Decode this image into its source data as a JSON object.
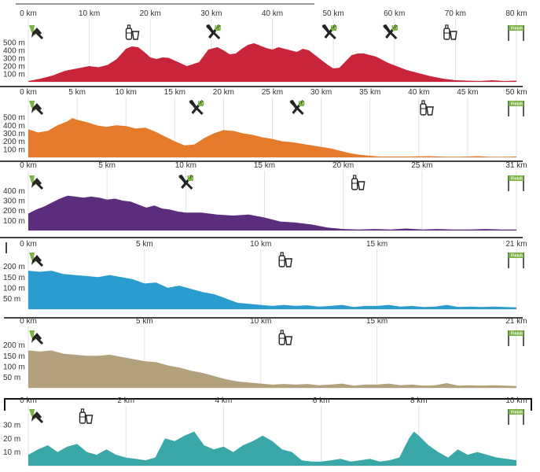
{
  "chart_data": [
    {
      "type": "area",
      "color": "#c8243a",
      "distance_unit": "km",
      "elevation_unit": "m",
      "x_ticks": [
        0,
        10,
        20,
        30,
        40,
        50,
        60,
        70,
        80
      ],
      "x_tick_labels": [
        "0 km",
        "10 km",
        "20 km",
        "30 km",
        "40 km",
        "50 km",
        "60 km",
        "70 km",
        "80 km"
      ],
      "y_ticks": [
        100,
        200,
        300,
        400,
        500
      ],
      "y_tick_labels": [
        "100 m",
        "200 m",
        "300 m",
        "400 m",
        "500 m"
      ],
      "xlim": [
        0,
        80
      ],
      "ylim": [
        0,
        560
      ],
      "icons": [
        {
          "name": "start-icon",
          "km": 0
        },
        {
          "name": "water-icon",
          "km": 17.2
        },
        {
          "name": "food-icon",
          "km": 30.3
        },
        {
          "name": "food-icon",
          "km": 49.3
        },
        {
          "name": "food-icon",
          "km": 59.3
        },
        {
          "name": "water-icon",
          "km": 69.3
        },
        {
          "name": "finish-icon",
          "km": 80
        }
      ],
      "finish_label": "Finish",
      "profile": {
        "x": [
          0,
          2,
          4,
          6,
          8,
          10,
          11.5,
          13,
          14.5,
          16,
          17,
          18,
          19,
          20,
          21,
          22,
          23,
          24,
          26,
          28,
          29.5,
          31,
          32,
          33,
          34,
          35,
          36,
          37,
          38,
          39,
          40,
          41,
          42,
          43,
          44,
          45,
          46,
          47,
          48,
          49,
          50,
          51,
          52,
          53,
          54,
          55,
          56,
          57,
          58,
          59,
          60,
          62,
          64,
          66,
          68,
          70,
          72,
          74,
          76,
          78,
          80
        ],
        "y": [
          10,
          40,
          80,
          140,
          170,
          200,
          185,
          215,
          290,
          420,
          450,
          440,
          380,
          310,
          290,
          310,
          305,
          270,
          200,
          250,
          410,
          440,
          400,
          350,
          360,
          420,
          470,
          490,
          460,
          430,
          410,
          440,
          420,
          400,
          380,
          420,
          400,
          340,
          280,
          220,
          170,
          180,
          260,
          340,
          360,
          360,
          340,
          320,
          280,
          240,
          210,
          150,
          110,
          70,
          40,
          20,
          15,
          10,
          20,
          10,
          15
        ]
      }
    },
    {
      "type": "area",
      "color": "#e57a2a",
      "distance_unit": "km",
      "elevation_unit": "m",
      "x_ticks": [
        0,
        5,
        10,
        15,
        20,
        25,
        30,
        35,
        40,
        45,
        50
      ],
      "x_tick_labels": [
        "0 km",
        "5 km",
        "10 km",
        "15 km",
        "20 km",
        "25 km",
        "30 km",
        "35 km",
        "40 km",
        "45 km",
        "50 km"
      ],
      "y_ticks": [
        100,
        200,
        300,
        400,
        500
      ],
      "y_tick_labels": [
        "100 m",
        "200 m",
        "300 m",
        "400 m",
        "500 m"
      ],
      "xlim": [
        0,
        50
      ],
      "ylim": [
        0,
        560
      ],
      "icons": [
        {
          "name": "start-icon",
          "km": 0
        },
        {
          "name": "food-icon",
          "km": 17.2
        },
        {
          "name": "food-icon",
          "km": 27.5
        },
        {
          "name": "water-icon",
          "km": 40.9
        },
        {
          "name": "finish-icon",
          "km": 50
        }
      ],
      "finish_label": "Finish",
      "profile": {
        "x": [
          0,
          1,
          2,
          3,
          4,
          4.5,
          5,
          6,
          7,
          8,
          9,
          10,
          11,
          12,
          13,
          14,
          15,
          16,
          17,
          18,
          19,
          20,
          21,
          22,
          23,
          24,
          25,
          26,
          27,
          28,
          29,
          30,
          31,
          32,
          33,
          34,
          35,
          36,
          37,
          38,
          39,
          40,
          41,
          42,
          43,
          44,
          45,
          46,
          47,
          48,
          49,
          50
        ],
        "y": [
          350,
          310,
          330,
          400,
          450,
          490,
          470,
          440,
          400,
          380,
          400,
          390,
          360,
          370,
          320,
          260,
          200,
          150,
          160,
          240,
          300,
          340,
          330,
          300,
          280,
          250,
          230,
          200,
          190,
          170,
          150,
          130,
          110,
          80,
          50,
          30,
          20,
          10,
          10,
          10,
          10,
          12,
          15,
          10,
          8,
          8,
          10,
          15,
          8,
          6,
          8,
          10
        ]
      }
    },
    {
      "type": "area",
      "color": "#5c2d7d",
      "distance_unit": "km",
      "elevation_unit": "m",
      "x_ticks": [
        0,
        5,
        10,
        15,
        20,
        25,
        31
      ],
      "x_tick_labels": [
        "0 km",
        "5 km",
        "10 km",
        "15 km",
        "20 km",
        "25 km",
        "31 km"
      ],
      "y_ticks": [
        100,
        200,
        300,
        400
      ],
      "y_tick_labels": [
        "100 m",
        "200 m",
        "300 m",
        "400 m"
      ],
      "xlim": [
        0,
        31
      ],
      "ylim": [
        0,
        450
      ],
      "icons": [
        {
          "name": "start-icon",
          "km": 0
        },
        {
          "name": "food-icon",
          "km": 10
        },
        {
          "name": "water-icon",
          "km": 21
        },
        {
          "name": "finish-icon",
          "km": 31
        }
      ],
      "finish_label": "Finish",
      "profile": {
        "x": [
          0,
          0.5,
          1,
          1.5,
          2,
          2.5,
          3,
          3.5,
          4,
          4.5,
          5,
          5.5,
          6,
          6.5,
          7,
          7.5,
          8,
          8.5,
          9,
          9.5,
          10,
          11,
          12,
          13,
          14,
          15,
          16,
          17,
          18,
          19,
          20,
          21,
          22,
          23,
          24,
          25,
          26,
          27,
          28,
          29,
          30,
          31
        ],
        "y": [
          170,
          210,
          240,
          280,
          320,
          350,
          340,
          330,
          340,
          330,
          310,
          320,
          300,
          290,
          260,
          230,
          250,
          220,
          210,
          190,
          180,
          180,
          160,
          150,
          160,
          130,
          90,
          80,
          60,
          30,
          15,
          10,
          15,
          10,
          20,
          10,
          15,
          10,
          10,
          15,
          10,
          10
        ]
      }
    },
    {
      "type": "area",
      "color": "#2b9cd0",
      "distance_unit": "km",
      "elevation_unit": "m",
      "x_ticks": [
        0,
        5,
        10,
        15,
        21
      ],
      "x_tick_labels": [
        "0 km",
        "5 km",
        "10 km",
        "15 km",
        "21 km"
      ],
      "y_ticks": [
        50,
        100,
        150,
        200
      ],
      "y_tick_labels": [
        "50 m",
        "100 m",
        "150 m",
        "200 m"
      ],
      "xlim": [
        0,
        21
      ],
      "ylim": [
        0,
        210
      ],
      "icons": [
        {
          "name": "start-icon",
          "km": 0
        },
        {
          "name": "water-icon",
          "km": 11.1
        },
        {
          "name": "finish-icon",
          "km": 21
        }
      ],
      "finish_label": "Finish",
      "profile": {
        "x": [
          0,
          0.5,
          1,
          1.5,
          2,
          2.5,
          3,
          3.5,
          4,
          4.5,
          5,
          5.5,
          6,
          6.5,
          7,
          7.5,
          8,
          8.5,
          9,
          9.5,
          10,
          10.5,
          11,
          11.5,
          12,
          12.5,
          13,
          13.5,
          14,
          14.5,
          15,
          15.5,
          16,
          16.5,
          17,
          17.5,
          18,
          18.5,
          19,
          19.5,
          20,
          20.5,
          21
        ],
        "y": [
          180,
          175,
          180,
          165,
          160,
          155,
          150,
          160,
          150,
          140,
          120,
          125,
          100,
          110,
          95,
          80,
          70,
          50,
          30,
          25,
          20,
          15,
          20,
          15,
          18,
          12,
          15,
          20,
          10,
          15,
          15,
          20,
          12,
          15,
          10,
          12,
          20,
          10,
          12,
          10,
          12,
          10,
          8
        ]
      }
    },
    {
      "type": "area",
      "color": "#b3a07c",
      "distance_unit": "km",
      "elevation_unit": "m",
      "x_ticks": [
        0,
        5,
        10,
        15,
        21
      ],
      "x_tick_labels": [
        "0 km",
        "5 km",
        "10 km",
        "15 km",
        "21 km"
      ],
      "y_ticks": [
        50,
        100,
        150,
        200
      ],
      "y_tick_labels": [
        "50 m",
        "100 m",
        "150 m",
        "200 m"
      ],
      "xlim": [
        0,
        21
      ],
      "ylim": [
        0,
        210
      ],
      "icons": [
        {
          "name": "start-icon",
          "km": 0
        },
        {
          "name": "water-icon",
          "km": 11.1
        },
        {
          "name": "finish-icon",
          "km": 21
        }
      ],
      "finish_label": "Finish",
      "profile": {
        "x": [
          0,
          0.5,
          1,
          1.5,
          2,
          2.5,
          3,
          3.5,
          4,
          4.5,
          5,
          5.5,
          6,
          6.5,
          7,
          7.5,
          8,
          8.5,
          9,
          9.5,
          10,
          10.5,
          11,
          11.5,
          12,
          12.5,
          13,
          13.5,
          14,
          14.5,
          15,
          15.5,
          16,
          16.5,
          17,
          17.5,
          18,
          18.5,
          19,
          19.5,
          20,
          20.5,
          21
        ],
        "y": [
          175,
          170,
          175,
          160,
          155,
          150,
          150,
          155,
          145,
          135,
          125,
          120,
          105,
          95,
          80,
          70,
          55,
          40,
          30,
          25,
          20,
          15,
          18,
          15,
          18,
          12,
          15,
          20,
          10,
          15,
          15,
          20,
          12,
          15,
          10,
          12,
          22,
          10,
          12,
          10,
          12,
          10,
          8
        ]
      }
    },
    {
      "type": "area",
      "color": "#3aa8a8",
      "distance_unit": "km",
      "elevation_unit": "m",
      "x_ticks": [
        0,
        2,
        4,
        6,
        8,
        10
      ],
      "x_tick_labels": [
        "0 km",
        "2 km",
        "4 km",
        "6 km",
        "8 km",
        "10 km"
      ],
      "y_ticks": [
        10,
        20,
        30
      ],
      "y_tick_labels": [
        "10 m",
        "20 m",
        "30 m"
      ],
      "xlim": [
        0,
        10
      ],
      "ylim": [
        0,
        34
      ],
      "icons": [
        {
          "name": "start-icon",
          "km": 0
        },
        {
          "name": "water-icon",
          "km": 1.2
        },
        {
          "name": "finish-icon",
          "km": 10
        }
      ],
      "finish_label": "Finish",
      "profile": {
        "x": [
          0,
          0.2,
          0.4,
          0.6,
          0.8,
          1,
          1.2,
          1.4,
          1.6,
          1.8,
          2,
          2.2,
          2.4,
          2.6,
          2.8,
          3,
          3.2,
          3.4,
          3.6,
          3.8,
          4,
          4.2,
          4.4,
          4.6,
          4.8,
          5,
          5.2,
          5.4,
          5.6,
          5.8,
          6,
          6.2,
          6.4,
          6.6,
          6.8,
          7,
          7.2,
          7.4,
          7.6,
          7.8,
          7.9,
          8,
          8.2,
          8.4,
          8.6,
          8.8,
          9,
          9.2,
          9.4,
          9.6,
          9.8,
          10
        ],
        "y": [
          8,
          12,
          15,
          10,
          14,
          16,
          10,
          8,
          12,
          8,
          6,
          5,
          4,
          6,
          20,
          18,
          22,
          25,
          15,
          12,
          14,
          10,
          15,
          18,
          22,
          18,
          12,
          10,
          4,
          3,
          3,
          4,
          5,
          3,
          4,
          5,
          3,
          4,
          6,
          20,
          25,
          22,
          15,
          10,
          6,
          12,
          8,
          10,
          8,
          6,
          5,
          4
        ]
      }
    }
  ]
}
